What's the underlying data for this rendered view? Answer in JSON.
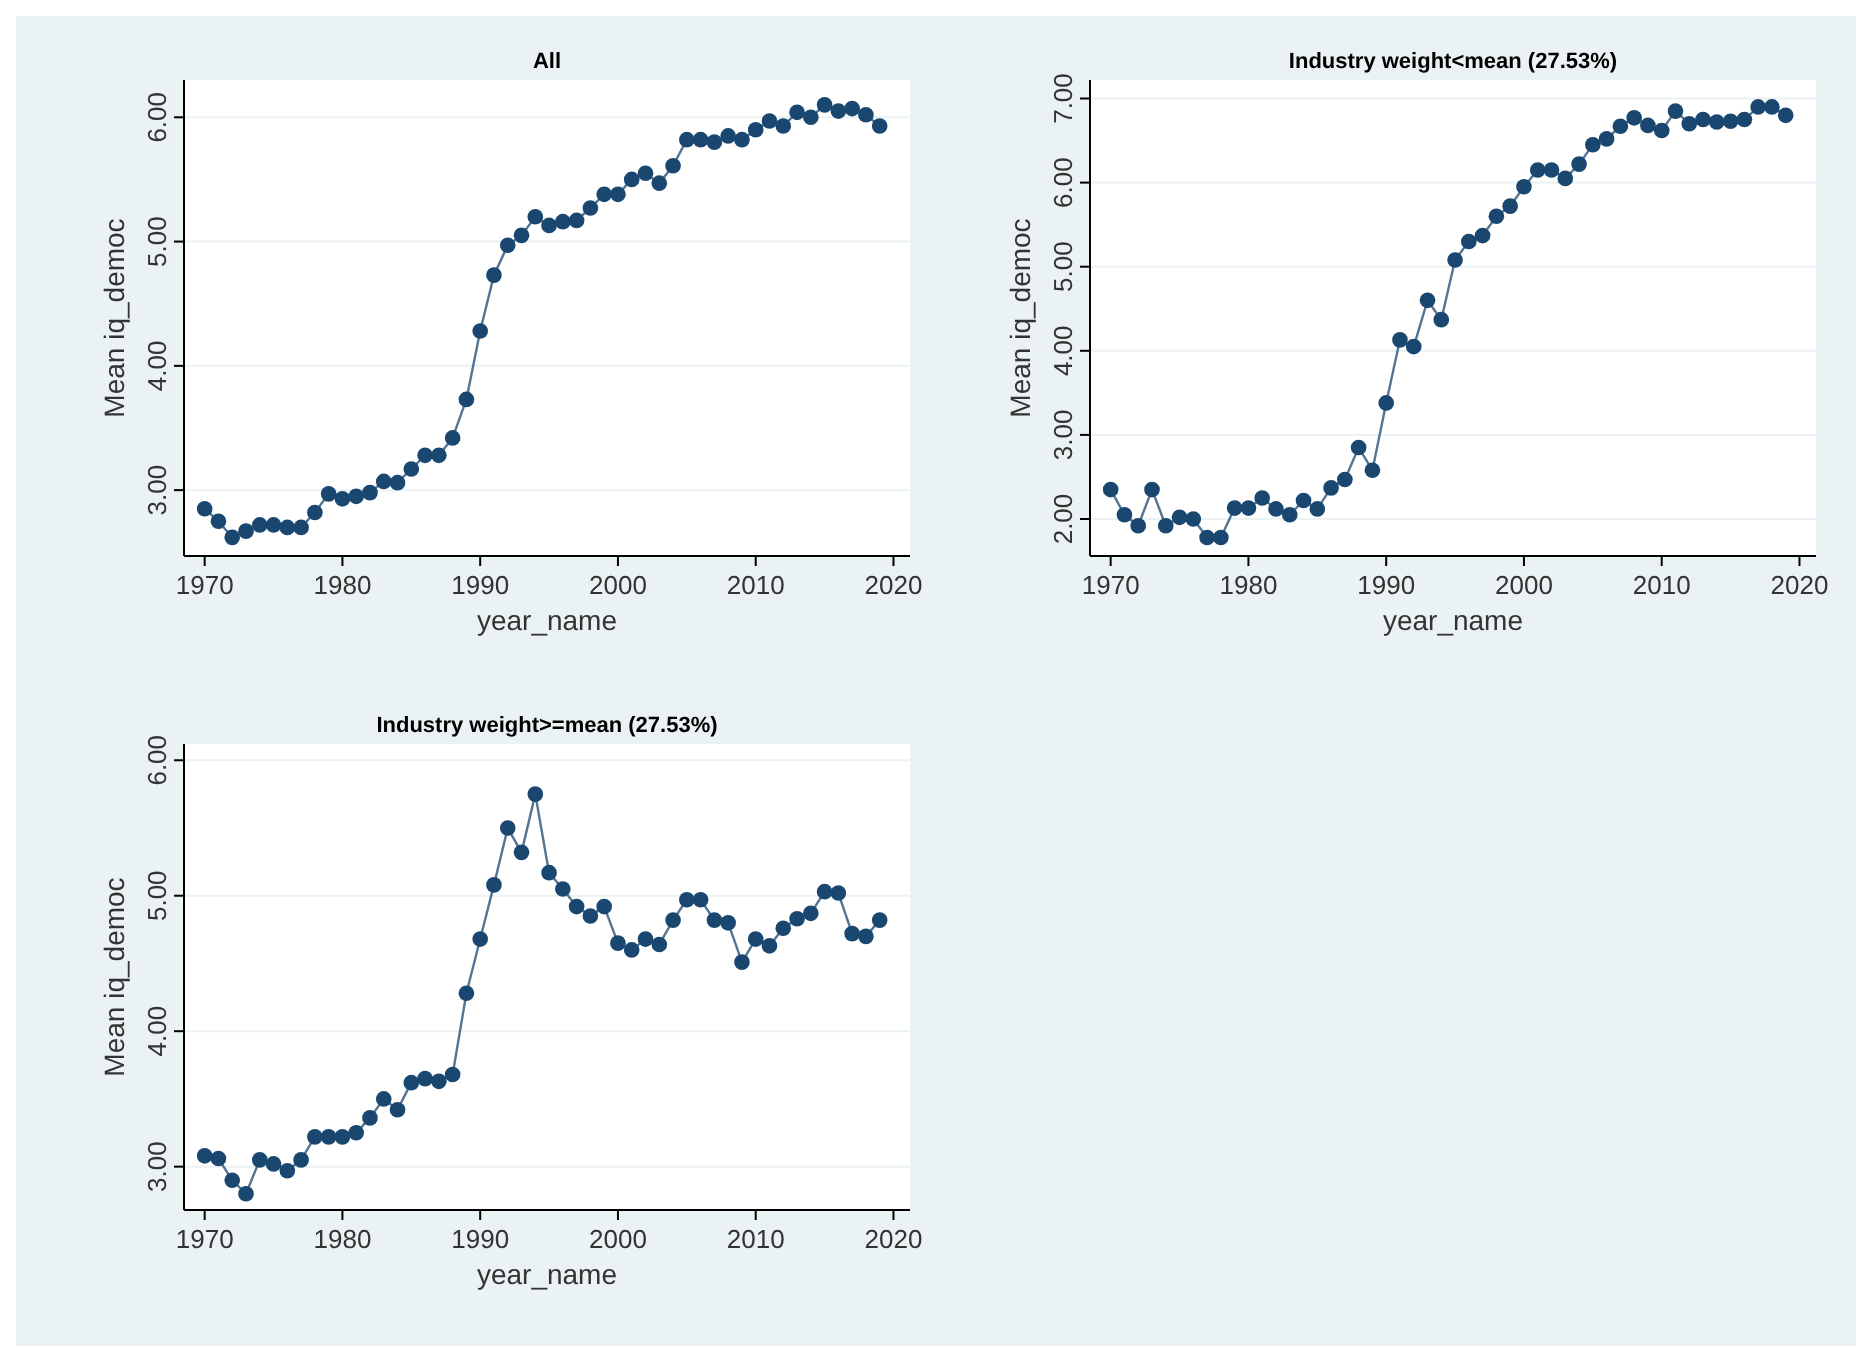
{
  "chart_data": [
    {
      "type": "line",
      "title": "All",
      "xlabel": "year_name",
      "ylabel": "Mean iq_democ",
      "x": [
        1970,
        1971,
        1972,
        1973,
        1974,
        1975,
        1976,
        1977,
        1978,
        1979,
        1980,
        1981,
        1982,
        1983,
        1984,
        1985,
        1986,
        1987,
        1988,
        1989,
        1990,
        1991,
        1992,
        1993,
        1994,
        1995,
        1996,
        1997,
        1998,
        1999,
        2000,
        2001,
        2002,
        2003,
        2004,
        2005,
        2006,
        2007,
        2008,
        2009,
        2010,
        2011,
        2012,
        2013,
        2014,
        2015,
        2016,
        2017,
        2018,
        2019
      ],
      "series": [
        {
          "color": "#1a476f",
          "values": [
            2.85,
            2.75,
            2.62,
            2.67,
            2.72,
            2.72,
            2.7,
            2.7,
            2.82,
            2.97,
            2.93,
            2.95,
            2.98,
            3.07,
            3.06,
            3.17,
            3.28,
            3.28,
            3.42,
            3.73,
            4.28,
            4.73,
            4.97,
            5.05,
            5.2,
            5.13,
            5.16,
            5.17,
            5.27,
            5.38,
            5.38,
            5.5,
            5.55,
            5.47,
            5.61,
            5.82,
            5.82,
            5.8,
            5.85,
            5.82,
            5.9,
            5.97,
            5.93,
            6.04,
            6.0,
            6.1,
            6.05,
            6.07,
            6.02,
            5.93
          ]
        }
      ],
      "xlim": [
        1968.5,
        2021.2
      ],
      "xticks": [
        1970,
        1980,
        1990,
        2000,
        2010,
        2020
      ],
      "ylim": [
        2.47,
        6.3
      ],
      "yticks": [
        {
          "value": 3,
          "label": "3.00"
        },
        {
          "value": 4,
          "label": "4.00"
        },
        {
          "value": 5,
          "label": "5.00"
        },
        {
          "value": 6,
          "label": "6.00"
        }
      ],
      "grid": "y",
      "marker": "circle"
    },
    {
      "type": "line",
      "title": "Industry weight<mean (27.53%)",
      "xlabel": "year_name",
      "ylabel": "Mean iq_democ",
      "x": [
        1970,
        1971,
        1972,
        1973,
        1974,
        1975,
        1976,
        1977,
        1978,
        1979,
        1980,
        1981,
        1982,
        1983,
        1984,
        1985,
        1986,
        1987,
        1988,
        1989,
        1990,
        1991,
        1992,
        1993,
        1994,
        1995,
        1996,
        1997,
        1998,
        1999,
        2000,
        2001,
        2002,
        2003,
        2004,
        2005,
        2006,
        2007,
        2008,
        2009,
        2010,
        2011,
        2012,
        2013,
        2014,
        2015,
        2016,
        2017,
        2018,
        2019
      ],
      "series": [
        {
          "color": "#1a476f",
          "values": [
            2.35,
            2.05,
            1.92,
            2.35,
            1.92,
            2.02,
            2.0,
            1.78,
            1.78,
            2.13,
            2.13,
            2.25,
            2.12,
            2.05,
            2.22,
            2.12,
            2.37,
            2.47,
            2.85,
            2.58,
            3.38,
            4.13,
            4.05,
            4.6,
            4.37,
            5.08,
            5.3,
            5.37,
            5.6,
            5.72,
            5.95,
            6.15,
            6.15,
            6.05,
            6.22,
            6.45,
            6.52,
            6.67,
            6.77,
            6.68,
            6.62,
            6.85,
            6.7,
            6.75,
            6.72,
            6.73,
            6.75,
            6.9,
            6.9,
            6.8
          ]
        }
      ],
      "xlim": [
        1968.5,
        2021.2
      ],
      "xticks": [
        1970,
        1980,
        1990,
        2000,
        2010,
        2020
      ],
      "ylim": [
        1.56,
        7.22
      ],
      "yticks": [
        {
          "value": 2,
          "label": "2.00"
        },
        {
          "value": 3,
          "label": "3.00"
        },
        {
          "value": 4,
          "label": "4.00"
        },
        {
          "value": 5,
          "label": "5.00"
        },
        {
          "value": 6,
          "label": "6.00"
        },
        {
          "value": 7,
          "label": "7.00"
        }
      ],
      "grid": "y",
      "marker": "circle"
    },
    {
      "type": "line",
      "title": "Industry weight>=mean (27.53%)",
      "xlabel": "year_name",
      "ylabel": "Mean iq_democ",
      "x": [
        1970,
        1971,
        1972,
        1973,
        1974,
        1975,
        1976,
        1977,
        1978,
        1979,
        1980,
        1981,
        1982,
        1983,
        1984,
        1985,
        1986,
        1987,
        1988,
        1989,
        1990,
        1991,
        1992,
        1993,
        1994,
        1995,
        1996,
        1997,
        1998,
        1999,
        2000,
        2001,
        2002,
        2003,
        2004,
        2005,
        2006,
        2007,
        2008,
        2009,
        2010,
        2011,
        2012,
        2013,
        2014,
        2015,
        2016,
        2017,
        2018,
        2019
      ],
      "series": [
        {
          "color": "#1a476f",
          "values": [
            3.08,
            3.06,
            2.9,
            2.8,
            3.05,
            3.02,
            2.97,
            3.05,
            3.22,
            3.22,
            3.22,
            3.25,
            3.36,
            3.5,
            3.42,
            3.62,
            3.65,
            3.63,
            3.68,
            4.28,
            4.68,
            5.08,
            5.5,
            5.32,
            5.75,
            5.17,
            5.05,
            4.92,
            4.85,
            4.92,
            4.65,
            4.6,
            4.68,
            4.64,
            4.82,
            4.97,
            4.97,
            4.82,
            4.8,
            4.51,
            4.68,
            4.63,
            4.76,
            4.83,
            4.87,
            5.03,
            5.02,
            4.72,
            4.7,
            4.82
          ]
        }
      ],
      "xlim": [
        1968.5,
        2021.2
      ],
      "xticks": [
        1970,
        1980,
        1990,
        2000,
        2010,
        2020
      ],
      "ylim": [
        2.68,
        6.12
      ],
      "yticks": [
        {
          "value": 3,
          "label": "3.00"
        },
        {
          "value": 4,
          "label": "4.00"
        },
        {
          "value": 5,
          "label": "5.00"
        },
        {
          "value": 6,
          "label": "6.00"
        }
      ],
      "grid": "y",
      "marker": "circle"
    }
  ]
}
